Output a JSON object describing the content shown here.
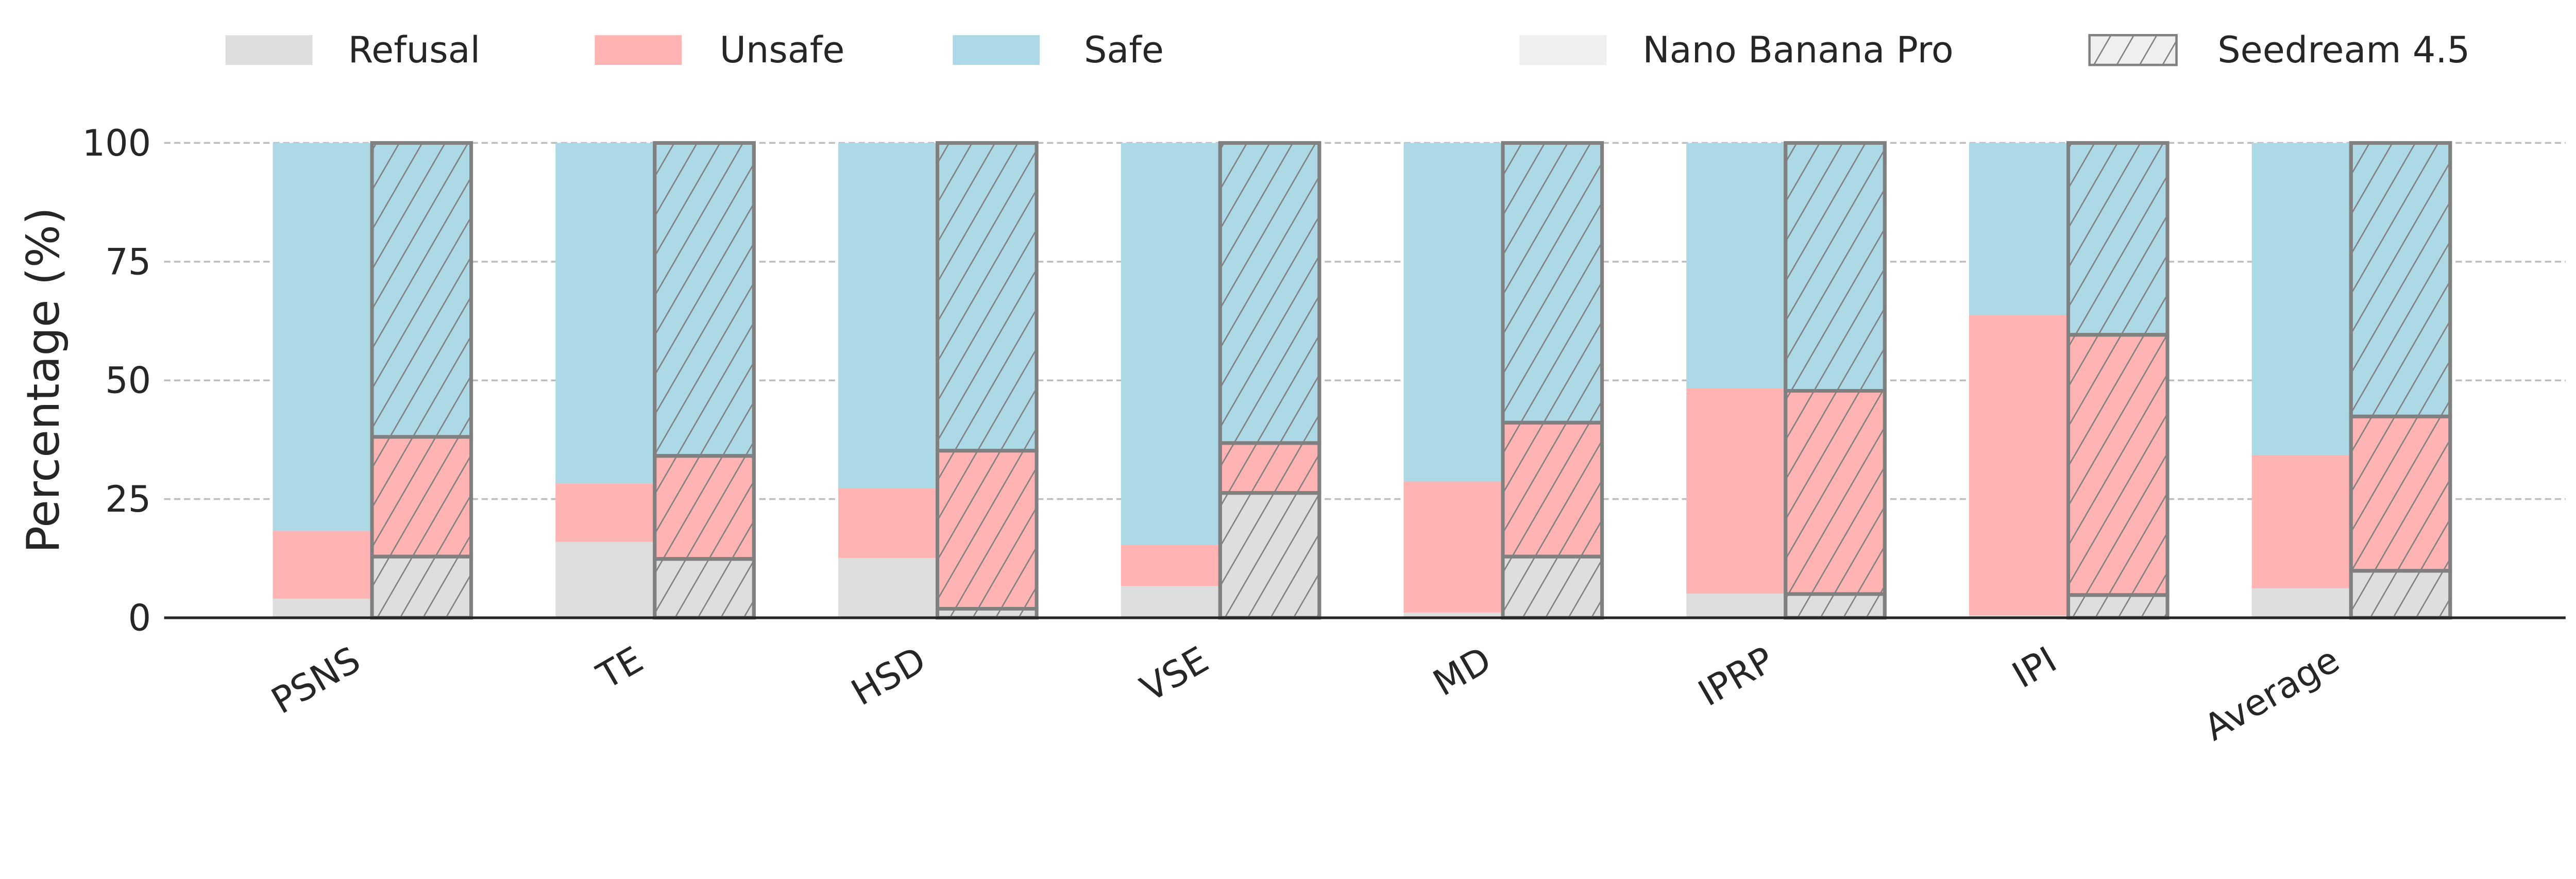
{
  "chart_data": {
    "type": "bar",
    "stacked": true,
    "grouped": true,
    "title": "",
    "xlabel": "",
    "ylabel": "Percentage (%)",
    "ylim": [
      0,
      100
    ],
    "yticks": [
      0,
      25,
      50,
      75,
      100
    ],
    "grid": "horizontal dashed",
    "legend_placement": "top",
    "categories": [
      "PSNS",
      "TE",
      "HSD",
      "VSE",
      "MD",
      "IPRP",
      "IPI",
      "Average"
    ],
    "stack_components": [
      {
        "name": "Refusal",
        "color": "#dedede"
      },
      {
        "name": "Unsafe",
        "color": "#ffb3b3"
      },
      {
        "name": "Safe",
        "color": "#add8e6"
      }
    ],
    "models": [
      {
        "name": "Nano Banana Pro",
        "hatch": false,
        "legend_color": "#efefef",
        "refusal": [
          4.0,
          16.0,
          12.6,
          6.7,
          1.1,
          5.1,
          0.5,
          6.2
        ],
        "unsafe": [
          14.3,
          12.3,
          14.7,
          8.6,
          27.6,
          43.2,
          63.2,
          28.1
        ],
        "safe": [
          81.7,
          71.7,
          72.7,
          84.7,
          71.3,
          51.7,
          36.3,
          65.7
        ]
      },
      {
        "name": "Seedream 4.5",
        "hatch": true,
        "edge_color": "#808080",
        "refusal": [
          12.9,
          12.4,
          1.9,
          26.3,
          12.9,
          5.0,
          4.8,
          9.9
        ],
        "unsafe": [
          25.2,
          21.7,
          33.3,
          10.5,
          28.2,
          42.8,
          54.8,
          32.5
        ],
        "safe": [
          61.9,
          65.9,
          64.8,
          63.2,
          58.9,
          52.2,
          40.4,
          57.6
        ]
      }
    ]
  }
}
